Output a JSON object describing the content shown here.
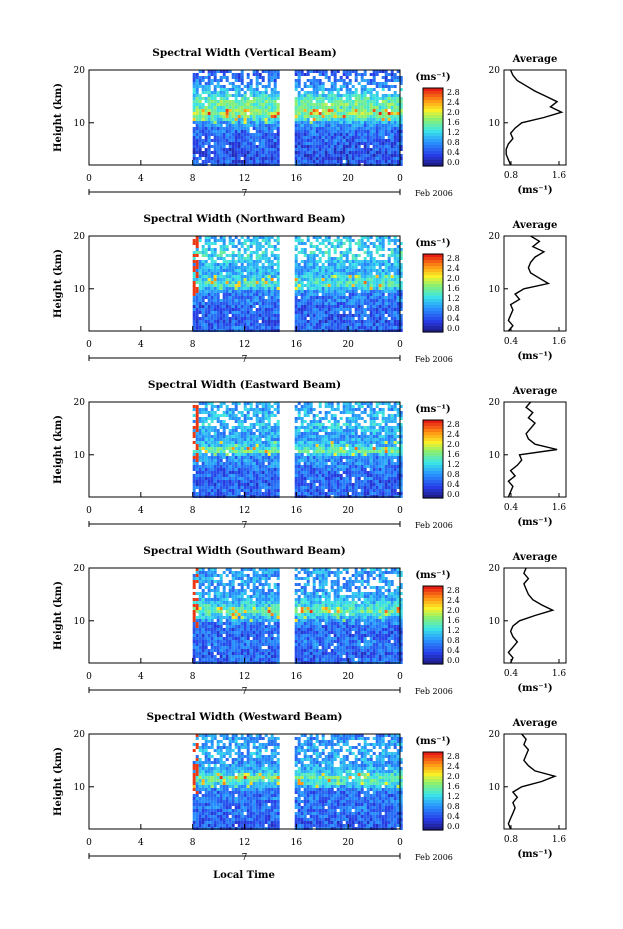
{
  "figure": {
    "xlabel": "Local Time",
    "date_label": "Feb 2006",
    "day_label": "7",
    "cb_unit": "(ms⁻¹)",
    "avg_title": "Average",
    "avg_xlabel": "(ms⁻¹)",
    "ylabel": "Height (km)"
  },
  "chart_data": [
    {
      "type": "heatmap",
      "title": "Spectral Width (Vertical Beam)",
      "ylabel": "Height (km)",
      "xlim": [
        0,
        24
      ],
      "ylim": [
        2,
        20
      ],
      "x_ticks": [
        "0",
        "4",
        "8",
        "12",
        "16",
        "20",
        "0"
      ],
      "y_ticks": [
        "20",
        "10"
      ],
      "data_start_hour": 8,
      "data_gaps_hours": [
        15.0,
        15.7
      ],
      "colorbar": {
        "unit": "(ms⁻¹)",
        "ticks": [
          "2.8",
          "2.4",
          "2.0",
          "1.6",
          "1.2",
          "0.8",
          "0.4",
          "0.0"
        ],
        "range": [
          0.0,
          3.0
        ]
      },
      "avg_profile": {
        "title": "Average",
        "xlabel": "(ms⁻¹)",
        "x_ticks": [
          "0.8",
          "1.6"
        ],
        "xlim": [
          0.4,
          1.8
        ],
        "heights": [
          2,
          3,
          4,
          5,
          6,
          7,
          8,
          9,
          10,
          11,
          12,
          13,
          14,
          15,
          16,
          17,
          18,
          19,
          20
        ],
        "values": [
          0.55,
          0.5,
          0.45,
          0.45,
          0.5,
          0.6,
          0.55,
          0.65,
          0.8,
          1.3,
          1.7,
          1.45,
          1.6,
          1.35,
          1.1,
          0.9,
          0.7,
          0.6,
          0.55
        ]
      }
    },
    {
      "type": "heatmap",
      "title": "Spectral Width (Northward Beam)",
      "ylabel": "Height (km)",
      "xlim": [
        0,
        24
      ],
      "ylim": [
        2,
        20
      ],
      "x_ticks": [
        "0",
        "4",
        "8",
        "12",
        "16",
        "20",
        "0"
      ],
      "y_ticks": [
        "20",
        "10"
      ],
      "data_start_hour": 8,
      "data_gaps_hours": [
        15.0,
        15.7
      ],
      "colorbar": {
        "unit": "(ms⁻¹)",
        "ticks": [
          "2.8",
          "2.4",
          "2.0",
          "1.6",
          "1.2",
          "0.8",
          "0.4",
          "0.0"
        ],
        "range": [
          0.0,
          3.0
        ]
      },
      "avg_profile": {
        "title": "Average",
        "xlabel": "(ms⁻¹)",
        "x_ticks": [
          "0.4",
          "1.6"
        ],
        "xlim": [
          0.4,
          1.8
        ],
        "heights": [
          2,
          3,
          4,
          5,
          6,
          7,
          8,
          9,
          10,
          11,
          12,
          13,
          14,
          15,
          16,
          17,
          18,
          19,
          20
        ],
        "values": [
          0.5,
          0.6,
          0.5,
          0.55,
          0.6,
          0.55,
          0.75,
          0.65,
          0.85,
          1.4,
          1.2,
          1.0,
          0.95,
          1.0,
          1.1,
          1.3,
          1.05,
          1.2,
          1.0
        ]
      }
    },
    {
      "type": "heatmap",
      "title": "Spectral Width (Eastward Beam)",
      "ylabel": "Height (km)",
      "xlim": [
        0,
        24
      ],
      "ylim": [
        2,
        20
      ],
      "x_ticks": [
        "0",
        "4",
        "8",
        "12",
        "16",
        "20",
        "0"
      ],
      "y_ticks": [
        "20",
        "10"
      ],
      "data_start_hour": 8,
      "data_gaps_hours": [
        15.0,
        15.7
      ],
      "colorbar": {
        "unit": "(ms⁻¹)",
        "ticks": [
          "2.8",
          "2.4",
          "2.0",
          "1.6",
          "1.2",
          "0.8",
          "0.4",
          "0.0"
        ],
        "range": [
          0.0,
          3.0
        ]
      },
      "avg_profile": {
        "title": "Average",
        "xlabel": "(ms⁻¹)",
        "x_ticks": [
          "0.4",
          "1.6"
        ],
        "xlim": [
          0.4,
          1.8
        ],
        "heights": [
          2,
          3,
          4,
          5,
          6,
          7,
          8,
          9,
          10,
          11,
          12,
          13,
          14,
          15,
          16,
          17,
          18,
          19,
          20
        ],
        "values": [
          0.5,
          0.55,
          0.6,
          0.5,
          0.65,
          0.55,
          0.7,
          0.8,
          0.75,
          1.6,
          1.1,
          0.95,
          0.9,
          1.0,
          1.1,
          0.95,
          1.05,
          0.9,
          1.0
        ]
      }
    },
    {
      "type": "heatmap",
      "title": "Spectral Width (Southward Beam)",
      "ylabel": "Height (km)",
      "xlim": [
        0,
        24
      ],
      "ylim": [
        2,
        20
      ],
      "x_ticks": [
        "0",
        "4",
        "8",
        "12",
        "16",
        "20",
        "0"
      ],
      "y_ticks": [
        "20",
        "10"
      ],
      "data_start_hour": 8,
      "data_gaps_hours": [
        15.0,
        15.7
      ],
      "colorbar": {
        "unit": "(ms⁻¹)",
        "ticks": [
          "2.8",
          "2.4",
          "2.0",
          "1.6",
          "1.2",
          "0.8",
          "0.4",
          "0.0"
        ],
        "range": [
          0.0,
          3.0
        ]
      },
      "avg_profile": {
        "title": "Average",
        "xlabel": "(ms⁻¹)",
        "x_ticks": [
          "0.4",
          "1.6"
        ],
        "xlim": [
          0.4,
          1.8
        ],
        "heights": [
          2,
          3,
          4,
          5,
          6,
          7,
          8,
          9,
          10,
          11,
          12,
          13,
          14,
          15,
          16,
          17,
          18,
          19,
          20
        ],
        "values": [
          0.55,
          0.6,
          0.5,
          0.6,
          0.7,
          0.6,
          0.55,
          0.6,
          0.75,
          1.1,
          1.5,
          1.25,
          1.05,
          0.95,
          0.9,
          0.85,
          0.95,
          0.85,
          0.9
        ]
      }
    },
    {
      "type": "heatmap",
      "title": "Spectral Width (Westward Beam)",
      "ylabel": "Height (km)",
      "xlim": [
        0,
        24
      ],
      "ylim": [
        2,
        20
      ],
      "x_ticks": [
        "0",
        "4",
        "8",
        "12",
        "16",
        "20",
        "0"
      ],
      "y_ticks": [
        "20",
        "10"
      ],
      "data_start_hour": 8,
      "data_gaps_hours": [
        15.0,
        15.7
      ],
      "colorbar": {
        "unit": "(ms⁻¹)",
        "ticks": [
          "2.8",
          "2.4",
          "2.0",
          "1.6",
          "1.2",
          "0.8",
          "0.4",
          "0.0"
        ],
        "range": [
          0.0,
          3.0
        ]
      },
      "avg_profile": {
        "title": "Average",
        "xlabel": "(ms⁻¹)",
        "x_ticks": [
          "0.8",
          "1.6"
        ],
        "xlim": [
          0.4,
          1.8
        ],
        "heights": [
          2,
          3,
          4,
          5,
          6,
          7,
          8,
          9,
          10,
          11,
          12,
          13,
          14,
          15,
          16,
          17,
          18,
          19,
          20
        ],
        "values": [
          0.55,
          0.5,
          0.55,
          0.6,
          0.65,
          0.6,
          0.7,
          0.6,
          0.8,
          1.25,
          1.55,
          1.1,
          0.95,
          0.85,
          0.9,
          0.95,
          0.85,
          0.9,
          0.8
        ]
      }
    }
  ]
}
